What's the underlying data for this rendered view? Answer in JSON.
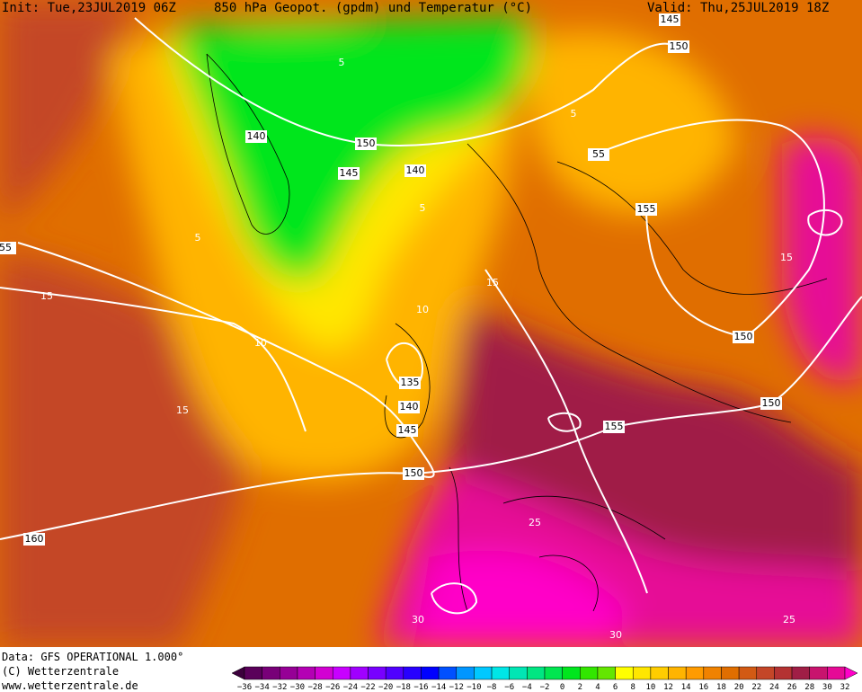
{
  "header": {
    "init": "Init: Tue,23JUL2019 06Z",
    "title": "850 hPa Geopot. (gpdm) und Temperatur (°C)",
    "valid": "Valid: Thu,25JUL2019 18Z"
  },
  "height_labels": [
    "145",
    "150",
    "150",
    "140",
    "145",
    "140",
    "55",
    "155",
    "55",
    "150",
    "150",
    "155",
    "135",
    "140",
    "145",
    "150",
    "160"
  ],
  "temperature_labels": [
    "5",
    "5",
    "5",
    "5",
    "10",
    "10",
    "15",
    "15",
    "15",
    "15",
    "25",
    "25",
    "30",
    "30"
  ],
  "footer": [
    "Data: GFS OPERATIONAL 1.000°",
    "(C) Wetterzentrale",
    "www.wetterzentrale.de"
  ],
  "colorbar": {
    "labels": [
      "−36",
      "−34",
      "−32",
      "−30",
      "−28",
      "−26",
      "−24",
      "−22",
      "−20",
      "−18",
      "−16",
      "−14",
      "−12",
      "−10",
      "−8",
      "−6",
      "−4",
      "−2",
      "0",
      "2",
      "4",
      "6",
      "8",
      "10",
      "12",
      "14",
      "16",
      "18",
      "20",
      "22",
      "24",
      "26",
      "28",
      "30",
      "32"
    ],
    "colors": [
      "#3c003c",
      "#5a005a",
      "#780078",
      "#960096",
      "#b400b4",
      "#d200d2",
      "#c800ff",
      "#a000ff",
      "#7800ff",
      "#5000ff",
      "#2800ff",
      "#0000ff",
      "#0050ff",
      "#0096ff",
      "#00c8ff",
      "#00e6e6",
      "#00e6b4",
      "#00e682",
      "#00e650",
      "#00e61e",
      "#32e600",
      "#64e600",
      "#ffff00",
      "#ffe600",
      "#ffcd00",
      "#ffb400",
      "#ff9b00",
      "#f08200",
      "#e06e00",
      "#d25a14",
      "#c44628",
      "#b43232",
      "#a01e46",
      "#c8146e",
      "#e60a96",
      "#ff00c8"
    ]
  }
}
